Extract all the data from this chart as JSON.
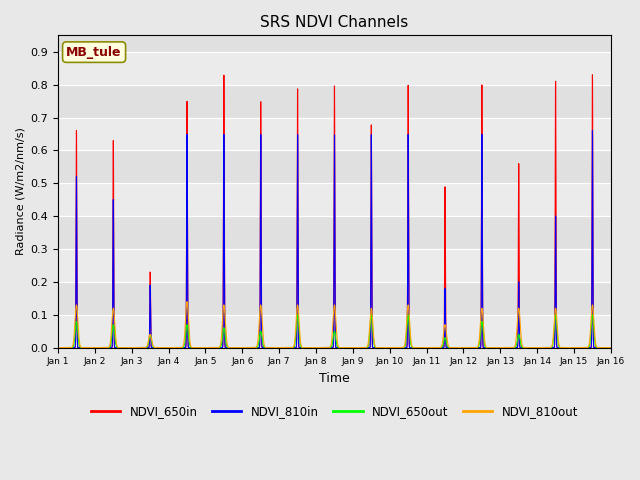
{
  "title": "SRS NDVI Channels",
  "xlabel": "Time",
  "ylabel": "Radiance (W/m2/nm/s)",
  "ylim": [
    0.0,
    0.95
  ],
  "annotation_text": "MB_tule",
  "legend_labels": [
    "NDVI_650in",
    "NDVI_810in",
    "NDVI_650out",
    "NDVI_810out"
  ],
  "colors": [
    "red",
    "blue",
    "lime",
    "orange"
  ],
  "xtick_labels": [
    "Jan 1",
    "Jan 2",
    "Jan 3",
    "Jan 4",
    "Jan 5",
    "Jan 6",
    "Jan 7",
    "Jan 8",
    "Jan 9",
    "Jan 10",
    "Jan 11",
    "Jan 12",
    "Jan 13",
    "Jan 14",
    "Jan 15",
    "Jan 16"
  ],
  "peak_650in": [
    0.66,
    0.63,
    0.23,
    0.75,
    0.83,
    0.75,
    0.79,
    0.8,
    0.68,
    0.8,
    0.49,
    0.8,
    0.56,
    0.81,
    0.83
  ],
  "peak_810in": [
    0.52,
    0.45,
    0.19,
    0.65,
    0.65,
    0.65,
    0.65,
    0.65,
    0.65,
    0.65,
    0.18,
    0.65,
    0.2,
    0.4,
    0.66
  ],
  "peak_650out": [
    0.08,
    0.07,
    0.04,
    0.07,
    0.06,
    0.05,
    0.1,
    0.05,
    0.1,
    0.1,
    0.03,
    0.08,
    0.04,
    0.1,
    0.1
  ],
  "peak_810out": [
    0.13,
    0.12,
    0.04,
    0.14,
    0.13,
    0.13,
    0.13,
    0.13,
    0.12,
    0.13,
    0.07,
    0.12,
    0.12,
    0.12,
    0.13
  ],
  "bg_color": "#e8e8e8",
  "plot_bg": "#ebebeb"
}
